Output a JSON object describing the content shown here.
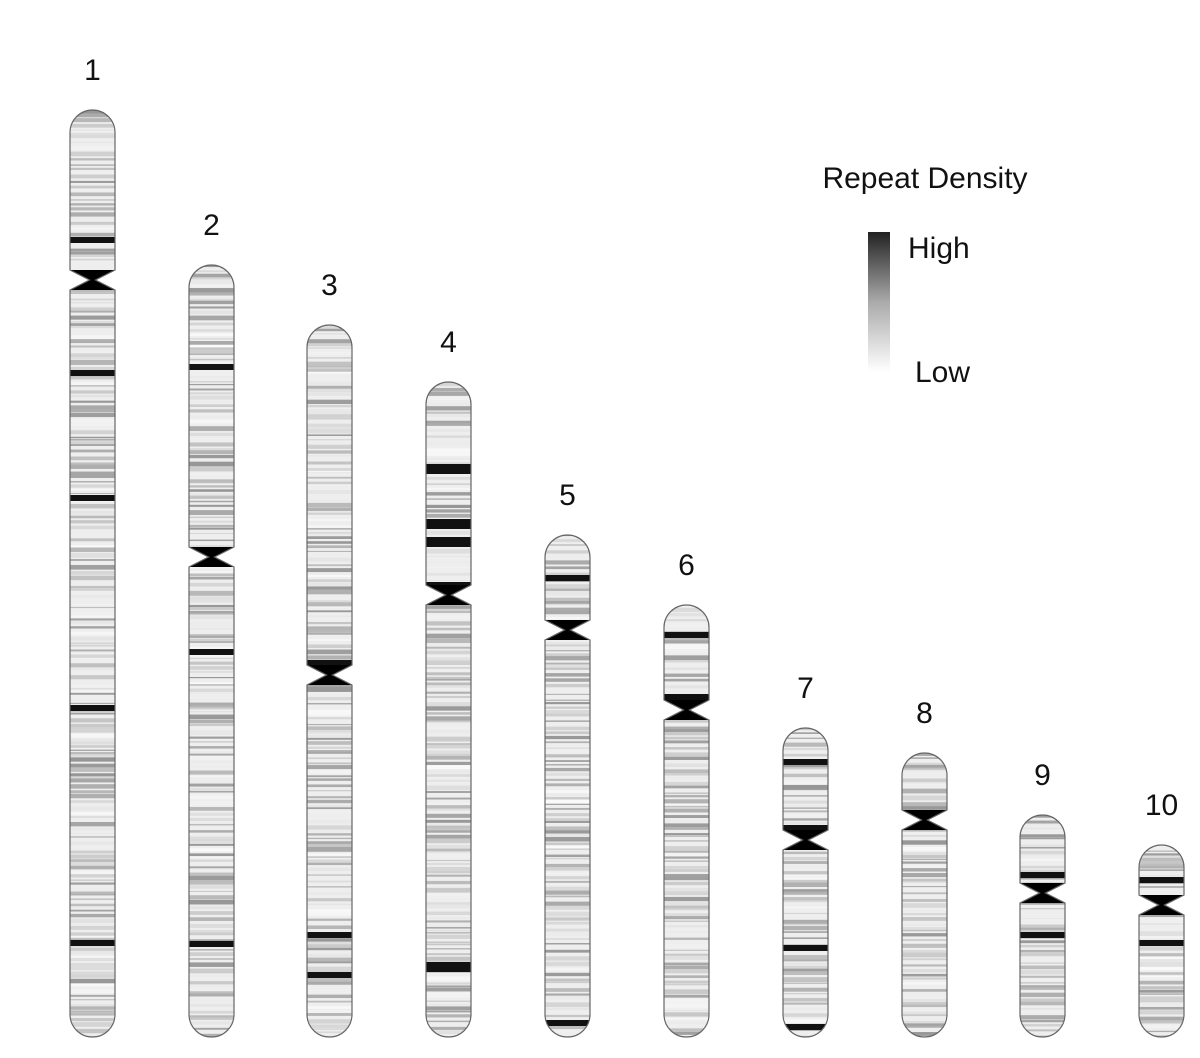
{
  "chromosomes": [
    {
      "label": "1"
    },
    {
      "label": "2"
    },
    {
      "label": "3"
    },
    {
      "label": "4"
    },
    {
      "label": "5"
    },
    {
      "label": "6"
    },
    {
      "label": "7"
    },
    {
      "label": "8"
    },
    {
      "label": "9"
    },
    {
      "label": "10"
    }
  ],
  "legend": {
    "title": "Repeat Density",
    "high": "High",
    "low": "Low"
  }
}
